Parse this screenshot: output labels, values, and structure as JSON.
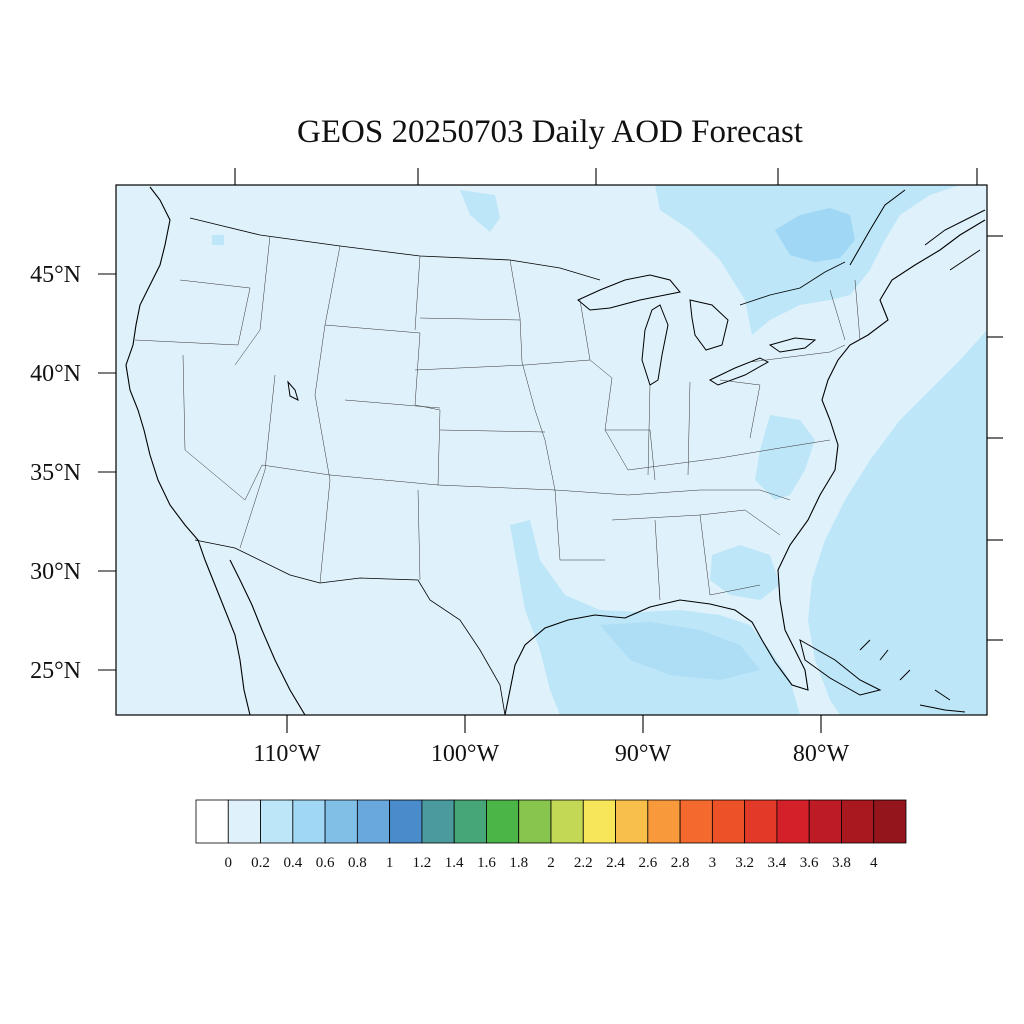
{
  "title": "GEOS 20250703 Daily AOD Forecast",
  "map": {
    "projection": "lambert-conformal",
    "lon_range": [
      -119,
      -71
    ],
    "lat_range": [
      22,
      49
    ],
    "background_color": "#dff2fc",
    "lat_ticks": [
      {
        "value": 45,
        "label": "45°N"
      },
      {
        "value": 40,
        "label": "40°N"
      },
      {
        "value": 35,
        "label": "35°N"
      },
      {
        "value": 30,
        "label": "30°N"
      },
      {
        "value": 25,
        "label": "25°N"
      }
    ],
    "lon_ticks": [
      {
        "value": -110,
        "label": "110°W"
      },
      {
        "value": -100,
        "label": "100°W"
      },
      {
        "value": -90,
        "label": "90°W"
      },
      {
        "value": -80,
        "label": "80°W"
      }
    ]
  },
  "colorbar": {
    "levels": [
      "0",
      "0.2",
      "0.4",
      "0.6",
      "0.8",
      "1",
      "1.2",
      "1.4",
      "1.6",
      "1.8",
      "2",
      "2.2",
      "2.4",
      "2.6",
      "2.8",
      "3",
      "3.2",
      "3.4",
      "3.6",
      "3.8",
      "4"
    ],
    "colors": [
      "#ffffff",
      "#dff2fc",
      "#bde6f8",
      "#a0d7f4",
      "#82bfe6",
      "#68a8dc",
      "#4a8ccb",
      "#4a9a9e",
      "#47a677",
      "#4cb548",
      "#87c54c",
      "#c3d854",
      "#f8e65a",
      "#f8bf4a",
      "#f89a3c",
      "#f46a2e",
      "#ec5128",
      "#e23a28",
      "#d42028",
      "#be1c24",
      "#a8181e",
      "#94161c"
    ]
  }
}
